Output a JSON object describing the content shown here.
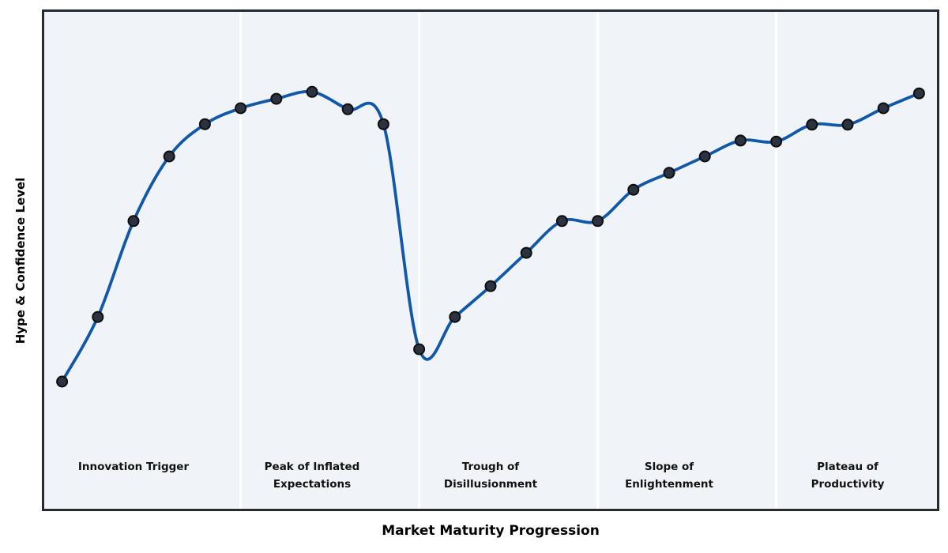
{
  "chart_data": {
    "type": "line",
    "title": "",
    "xlabel": "Market Maturity Progression",
    "ylabel": "Hype & Confidence Level",
    "x": [
      0,
      1,
      2,
      3,
      4,
      5,
      6,
      7,
      8,
      9,
      10,
      11,
      12,
      13,
      14,
      15,
      16,
      17,
      18,
      19,
      20,
      21,
      22,
      23,
      24
    ],
    "y": [
      25.6,
      38.6,
      57.9,
      70.9,
      77.4,
      80.6,
      82.5,
      83.9,
      80.4,
      77.4,
      32.1,
      38.6,
      44.8,
      51.5,
      57.9,
      57.9,
      64.2,
      67.6,
      70.9,
      74.1,
      73.9,
      77.3,
      77.3,
      80.6,
      83.6
    ],
    "xlim": [
      -0.5,
      24.5
    ],
    "ylim": [
      0,
      100
    ],
    "grid": false,
    "legend": "none",
    "curve_style": "smooth-spline",
    "dividers_x": [
      5,
      10,
      15,
      20
    ],
    "phases": [
      {
        "label": "Innovation Trigger",
        "line1": "Innovation Trigger",
        "line2": "",
        "center_x": 2
      },
      {
        "label": "Peak of Inflated Expectations",
        "line1": "Peak of Inflated",
        "line2": "Expectations",
        "center_x": 7
      },
      {
        "label": "Trough of Disillusionment",
        "line1": "Trough of",
        "line2": "Disillusionment",
        "center_x": 12
      },
      {
        "label": "Slope of Enlightenment",
        "line1": "Slope of",
        "line2": "Enlightenment",
        "center_x": 17
      },
      {
        "label": "Plateau of Productivity",
        "line1": "Plateau of",
        "line2": "Productivity",
        "center_x": 22
      }
    ],
    "colors": {
      "line": "#1159a8",
      "marker_fill": "#2b3340",
      "marker_edge": "#0d0d0d",
      "plot_bg": "#f0f4f8",
      "divider": "#ffffff",
      "border": "#272b31",
      "figure_bg": "#ffffff"
    },
    "line_width": 3.8,
    "marker_radius": 6.5
  }
}
